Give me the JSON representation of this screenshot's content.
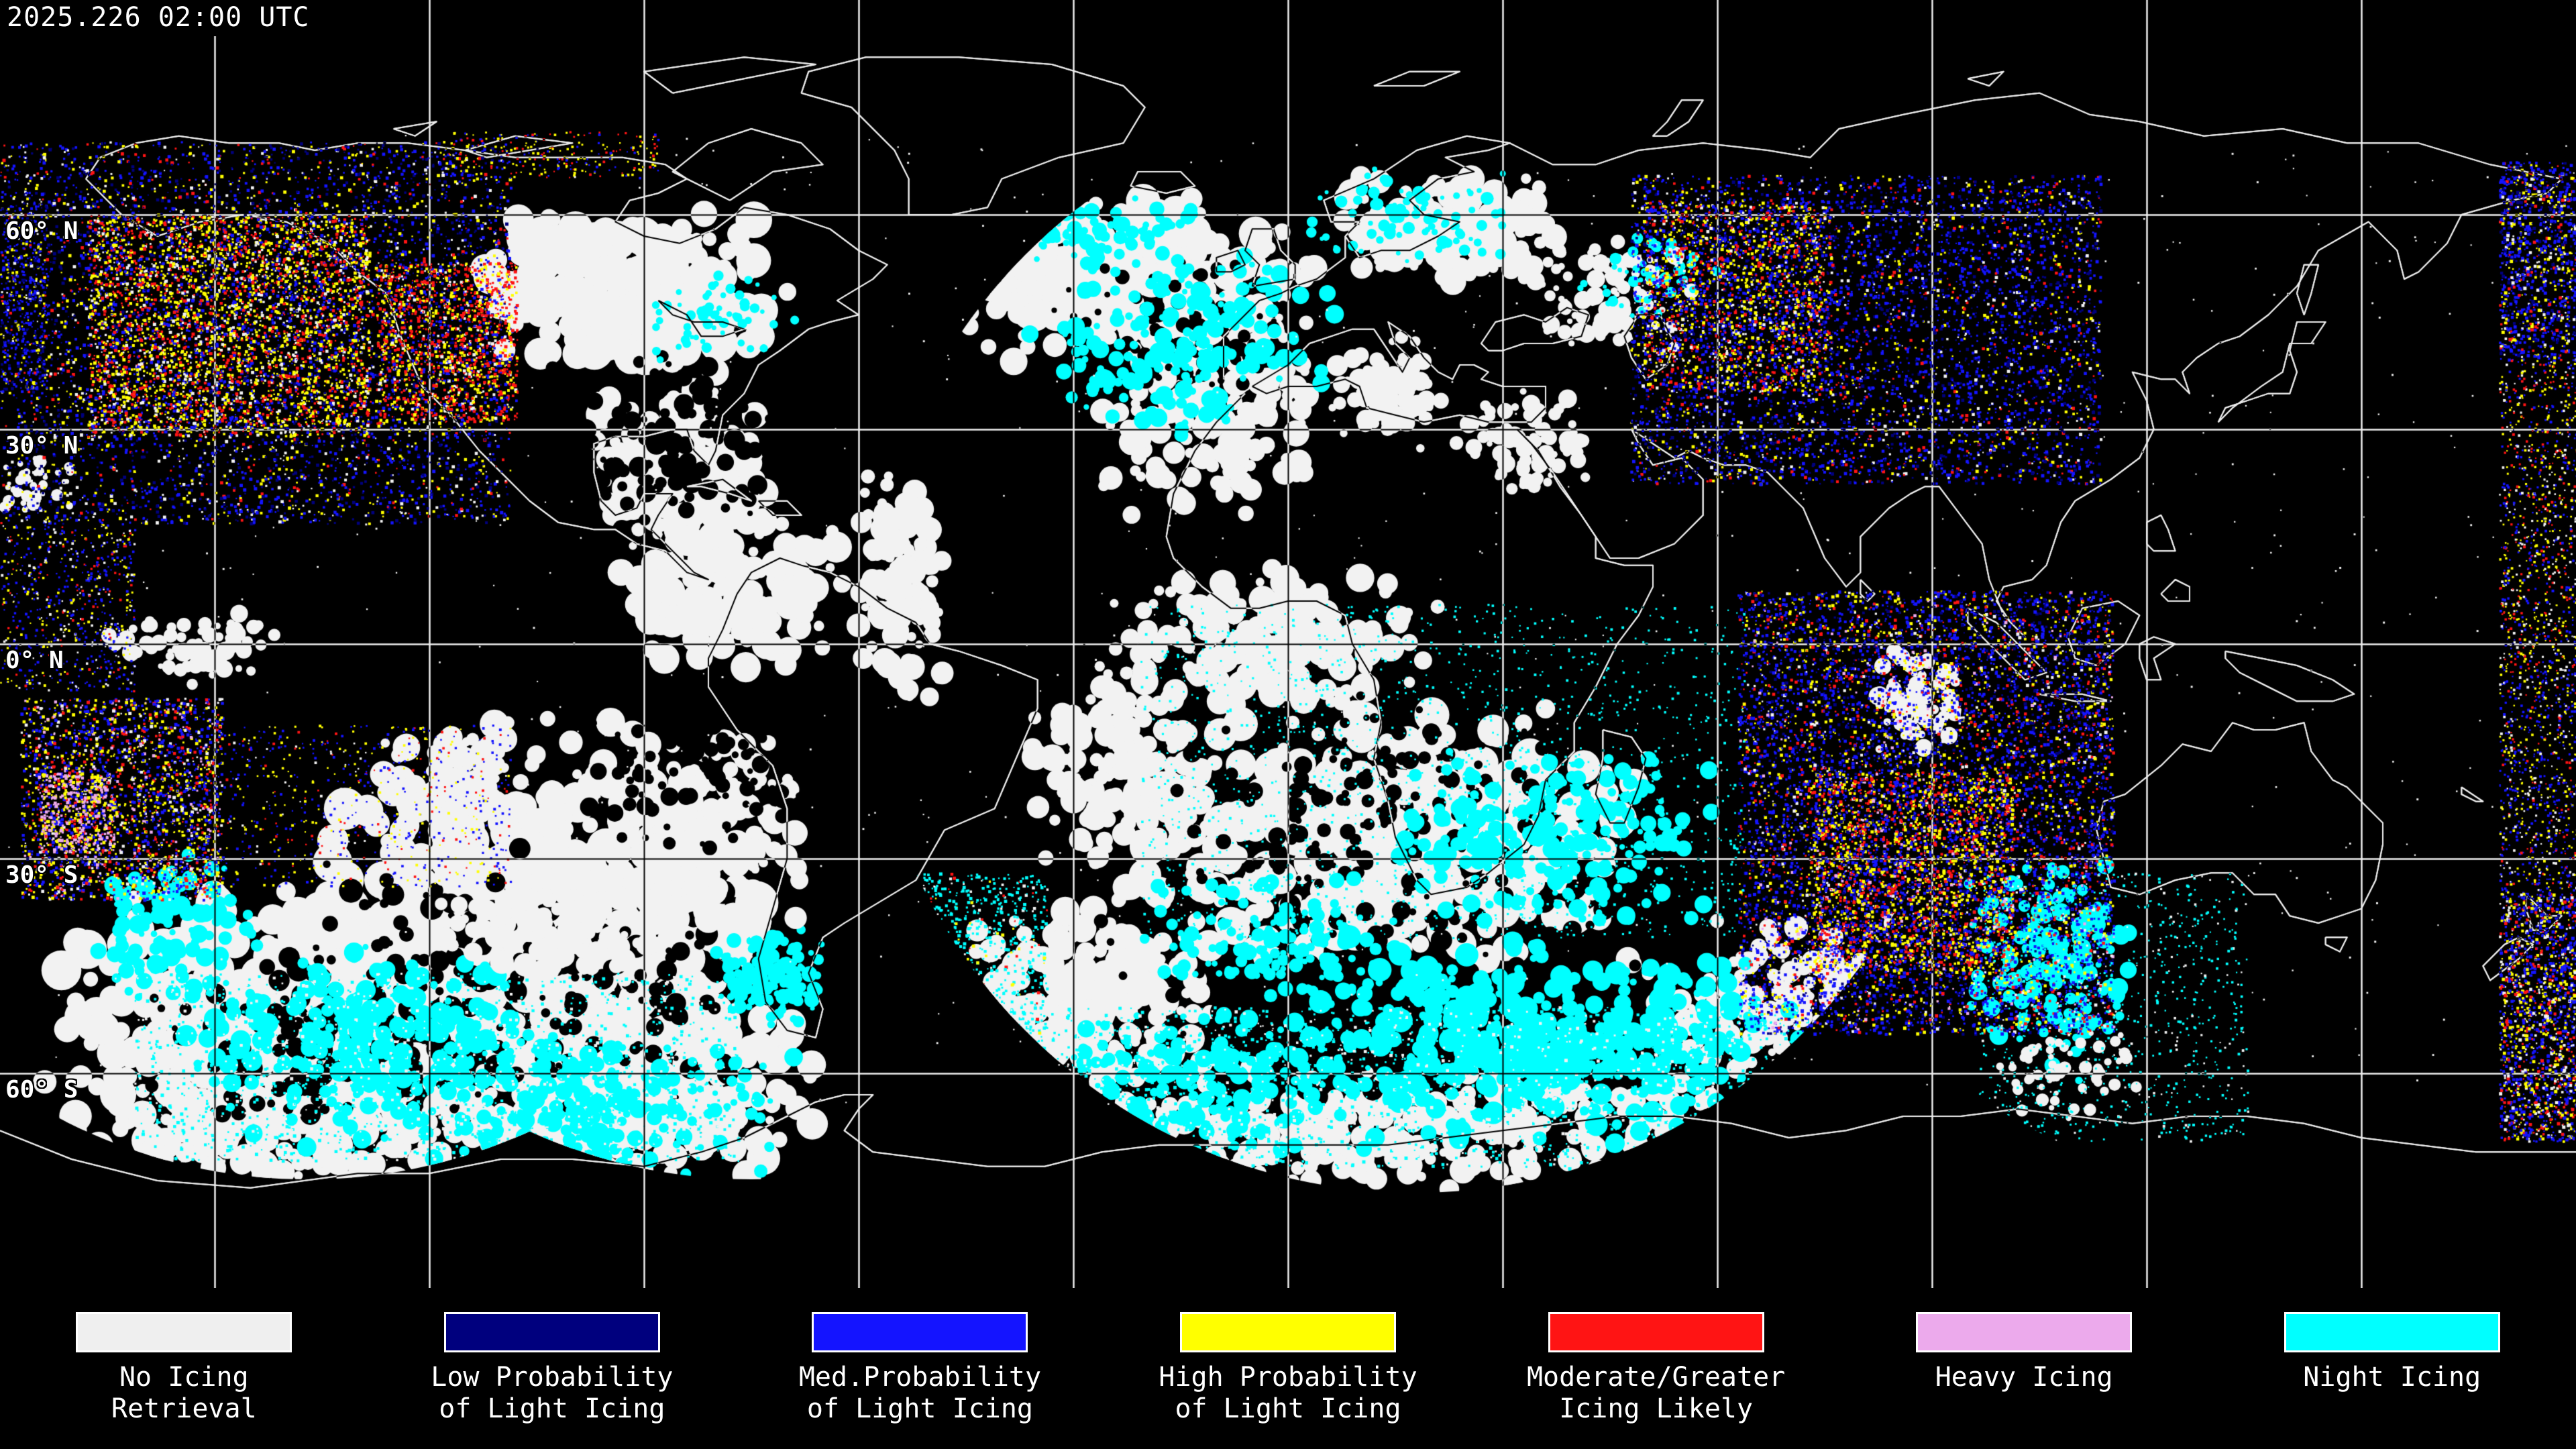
{
  "header": {
    "timestamp": "2025.226 02:00 UTC"
  },
  "map": {
    "latitude_labels": [
      {
        "id": "60n",
        "text": "60° N"
      },
      {
        "id": "30n",
        "text": "30° N"
      },
      {
        "id": "0",
        "text": "0° N"
      },
      {
        "id": "30s",
        "text": "30° S"
      },
      {
        "id": "60s",
        "text": "60° S"
      }
    ]
  },
  "legend": {
    "items": [
      {
        "id": "no-icing-retrieval",
        "line1": "No Icing",
        "line2": "Retrieval",
        "color": "#EFEFEF"
      },
      {
        "id": "low-prob-light-icing",
        "line1": "Low Probability",
        "line2": "of Light Icing",
        "color": "#00007E"
      },
      {
        "id": "med-prob-light-icing",
        "line1": "Med.Probability",
        "line2": "of Light Icing",
        "color": "#1414FF"
      },
      {
        "id": "high-prob-light-icing",
        "line1": "High Probability",
        "line2": "of Light Icing",
        "color": "#FFFF00"
      },
      {
        "id": "moderate-greater-icing",
        "line1": "Moderate/Greater",
        "line2": "Icing Likely",
        "color": "#FF1414"
      },
      {
        "id": "heavy-icing",
        "line1": "Heavy Icing",
        "line2": "",
        "color": "#ECAAEC"
      },
      {
        "id": "night-icing",
        "line1": "Night Icing",
        "line2": "",
        "color": "#00FFFF"
      }
    ]
  },
  "palette": {
    "background": "#000000",
    "gridline": "#F0F0F0",
    "coastline": "#EFEFEF",
    "no_icing_cloud": "#F2F2F2",
    "night_icing": "#00FFFF",
    "low_prob": "#00007E",
    "med_prob": "#1414FF",
    "high_prob": "#FFFF00",
    "moderate_greater": "#FF1414",
    "heavy_icing": "#ECAAEC"
  }
}
